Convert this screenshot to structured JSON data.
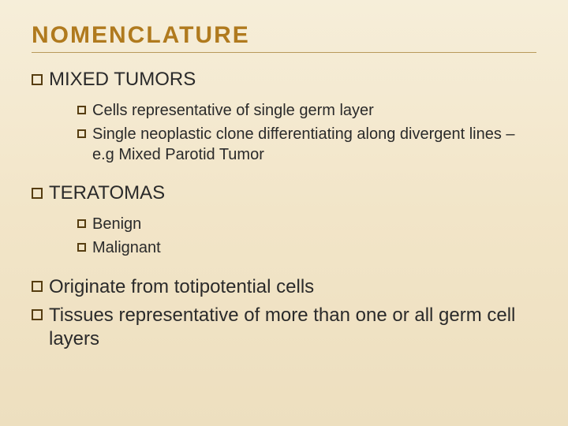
{
  "colors": {
    "background_top": "#f6eed9",
    "background_bottom": "#eddfbf",
    "title_color": "#b07a1e",
    "rule_color": "#b89a5a",
    "bullet_border": "#563d10",
    "body_text": "#2a2a2a"
  },
  "typography": {
    "title_fontsize": 30,
    "title_letter_spacing": 2,
    "lvl1_fontsize": 24,
    "lvl2_fontsize": 20,
    "font_family": "Arial"
  },
  "title": "NOMENCLATURE",
  "sections": {
    "mixed_tumors": {
      "heading": "MIXED  TUMORS",
      "items": [
        "Cells representative of single germ layer",
        "Single neoplastic clone differentiating  along  divergent lines – e.g Mixed Parotid Tumor"
      ]
    },
    "teratomas": {
      "heading": "TERATOMAS",
      "items": [
        " Benign",
        "Malignant"
      ]
    },
    "final": [
      "Originate from totipotential cells",
      " Tissues representative of  more than one or all germ cell layers"
    ]
  }
}
